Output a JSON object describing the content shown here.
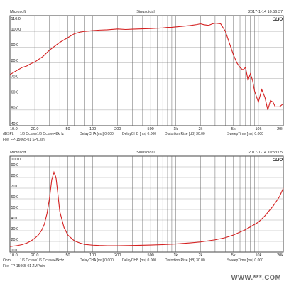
{
  "chart_data": [
    {
      "type": "line",
      "header": {
        "left": "Microsoft",
        "center": "Sinusoidal",
        "right": "2017-1-14 10:56:37"
      },
      "brand": "CLIO",
      "xscale": "log",
      "xlim": [
        10,
        20000
      ],
      "ylim": [
        40,
        110
      ],
      "yticks": [
        40,
        50,
        60,
        70,
        80,
        90,
        100,
        110
      ],
      "ytick_labels": [
        "40.0",
        "50.0",
        "60.0",
        "70.0",
        "80.0",
        "90.0",
        "100.0",
        "110.0"
      ],
      "xticks": [
        10,
        20,
        50,
        100,
        200,
        500,
        1000,
        2000,
        5000,
        10000,
        20000
      ],
      "xtick_labels": [
        "10.0",
        "20.0",
        "50",
        "100",
        "200",
        "500",
        "1k",
        "2k",
        "5k",
        "10k",
        "20k"
      ],
      "grid": true,
      "footer": {
        "line1": [
          "dBSPL",
          "1/6 Octave",
          "1/6 Octave",
          "48kHz",
          "DelayCHA [ms] 0.000",
          "DelayCHB [ms] 0.000",
          "Distortion Rise [dB] 30.00",
          "SweepTime [ms] 0.000"
        ],
        "line2": "File: FP-15065-01 SPL.sin"
      },
      "series": [
        {
          "x": [
            10,
            12,
            14,
            16,
            18,
            20,
            25,
            30,
            40,
            50,
            60,
            70,
            80,
            90,
            100,
            120,
            150,
            200,
            250,
            300,
            400,
            500,
            600,
            700,
            800,
            900,
            1000,
            1200,
            1500,
            1800,
            2000,
            2200,
            2500,
            2800,
            3000,
            3500,
            4000,
            4500,
            5000,
            5500,
            6000,
            6500,
            7000,
            7500,
            8000,
            8500,
            9000,
            10000,
            11000,
            12000,
            13000,
            14000,
            15000,
            16000,
            18000,
            20000
          ],
          "values": [
            72.5,
            75,
            77,
            78,
            79.5,
            80.5,
            84,
            88,
            93,
            96,
            98.5,
            99.5,
            100,
            100.2,
            100.5,
            100.8,
            101,
            101.5,
            101.2,
            101.4,
            101.6,
            101.8,
            102,
            102.2,
            102.5,
            102.6,
            102.8,
            103.2,
            103.7,
            104.3,
            104.8,
            104.2,
            103.8,
            104.8,
            105.2,
            104.8,
            100,
            92,
            85,
            80,
            77,
            75.5,
            77,
            69,
            73,
            69,
            62,
            55,
            63,
            58,
            50,
            56,
            55,
            52,
            52,
            54
          ]
        }
      ]
    },
    {
      "type": "line",
      "header": {
        "left": "Microsoft",
        "center": "Sinusoidal",
        "right": "2017-1-14 10:53:05"
      },
      "brand": "CLIO",
      "xscale": "log",
      "xlim": [
        10,
        20000
      ],
      "ylim": [
        10,
        100
      ],
      "yticks": [
        10,
        20,
        30,
        40,
        50,
        60,
        70,
        80,
        90,
        100
      ],
      "ytick_labels": [
        "10.0",
        "20.0",
        "30.0",
        "40.0",
        "50.0",
        "60.0",
        "70.0",
        "80.0",
        "90.0",
        "100.0"
      ],
      "xticks": [
        10,
        20,
        50,
        100,
        200,
        500,
        1000,
        2000,
        5000,
        10000,
        20000
      ],
      "xtick_labels": [
        "10.0",
        "20.0",
        "50",
        "100",
        "200",
        "500",
        "1k",
        "2k",
        "5k",
        "10k",
        "20k"
      ],
      "grid": true,
      "footer": {
        "line1": [
          "Ohm",
          "1/6 Octave",
          "1/6 Octave",
          "48kHz",
          "DelayCHA [ms] 0.000",
          "DelayCHB [ms] 0.000",
          "Distortion Rise [dB] 30.00",
          "SweepTime [ms] 0.000"
        ],
        "line2": "File: FP-15065-01 ZMP.sin"
      },
      "series": [
        {
          "x": [
            10,
            12,
            14,
            16,
            18,
            20,
            22,
            24,
            26,
            28,
            30,
            32,
            34,
            36,
            38,
            40,
            45,
            50,
            60,
            70,
            80,
            100,
            120,
            150,
            200,
            300,
            500,
            700,
            1000,
            1500,
            2000,
            3000,
            4000,
            5000,
            7000,
            10000,
            12000,
            15000,
            18000,
            20000
          ],
          "values": [
            15.2,
            16,
            17,
            18.5,
            20.5,
            23,
            26,
            30,
            36,
            46,
            60,
            78,
            85,
            80,
            64,
            48,
            33,
            26,
            20.5,
            18.5,
            17.2,
            16.5,
            16.2,
            16,
            16,
            16.2,
            16.6,
            17,
            17.6,
            18.6,
            19.5,
            21.5,
            23.5,
            26,
            31,
            38,
            44,
            53,
            62,
            70
          ]
        }
      ]
    }
  ],
  "watermark": "WWW.***.COM"
}
